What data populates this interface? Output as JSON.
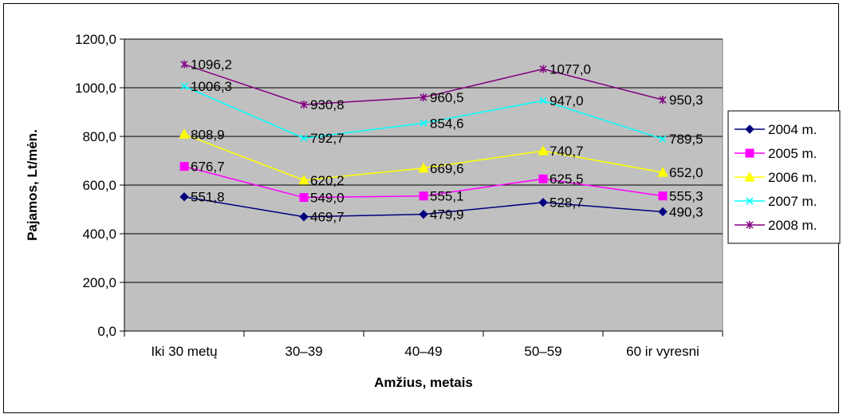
{
  "chart_data": {
    "type": "line",
    "title": "",
    "xlabel": "Amžius, metais",
    "ylabel": "Pajamos, Lt/mėn.",
    "categories": [
      "Iki 30 metų",
      "30–39",
      "40–49",
      "50–59",
      "60 ir vyresni"
    ],
    "ylim": [
      0,
      1200
    ],
    "yticks": [
      0,
      200,
      400,
      600,
      800,
      1000,
      1200
    ],
    "ytick_labels": [
      "0,0",
      "200,0",
      "400,0",
      "600,0",
      "800,0",
      "1000,0",
      "1200,0"
    ],
    "grid": true,
    "plot_background": "#c0c0c0",
    "legend_position": "right",
    "series": [
      {
        "name": "2004 m.",
        "color": "#000080",
        "marker": "diamond",
        "values": [
          551.8,
          469.7,
          479.9,
          528.7,
          490.3
        ],
        "labels": [
          "551,8",
          "469,7",
          "479,9",
          "528,7",
          "490,3"
        ]
      },
      {
        "name": "2005 m.",
        "color": "#ff00ff",
        "marker": "square",
        "values": [
          676.7,
          549.0,
          555.1,
          625.5,
          555.3
        ],
        "labels": [
          "676,7",
          "549,0",
          "555,1",
          "625,5",
          "555,3"
        ]
      },
      {
        "name": "2006 m.",
        "color": "#ffff00",
        "marker": "triangle",
        "values": [
          808.9,
          620.2,
          669.6,
          740.7,
          652.0
        ],
        "labels": [
          "808,9",
          "620,2",
          "669,6",
          "740,7",
          "652,0"
        ]
      },
      {
        "name": "2007 m.",
        "color": "#00ffff",
        "marker": "x",
        "values": [
          1006.3,
          792.7,
          854.6,
          947.0,
          789.5
        ],
        "labels": [
          "1006,3",
          "792,7",
          "854,6",
          "947,0",
          "789,5"
        ]
      },
      {
        "name": "2008 m.",
        "color": "#800080",
        "marker": "star",
        "values": [
          1096.2,
          930.8,
          960.5,
          1077.0,
          950.3
        ],
        "labels": [
          "1096,2",
          "930,8",
          "960,5",
          "1077,0",
          "950,3"
        ]
      }
    ]
  }
}
